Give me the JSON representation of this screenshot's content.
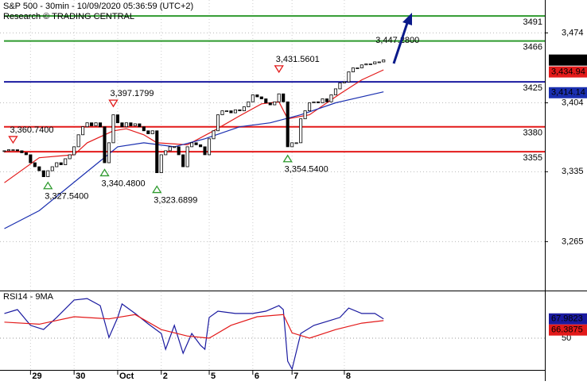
{
  "chart_data": {
    "type": "candlestick",
    "title": "S&P 500 - 30min - 10/09/2020 05:36:59 (UTC+2)",
    "subtitle": "Research © TRADING CENTRAL",
    "xlim": [
      -1,
      124
    ],
    "xticks": [
      {
        "value": 6,
        "label": "29"
      },
      {
        "value": 16,
        "label": "30"
      },
      {
        "value": 26,
        "label": "Oct"
      },
      {
        "value": 36,
        "label": "2"
      },
      {
        "value": 47,
        "label": "5"
      },
      {
        "value": 57,
        "label": "6"
      },
      {
        "value": 66,
        "label": "7"
      },
      {
        "value": 78,
        "label": "8"
      }
    ],
    "ylim": [
      3216,
      3507
    ],
    "yticks": [
      {
        "value": 3474,
        "label": "3,474"
      },
      {
        "value": 3404,
        "label": "3,404"
      },
      {
        "value": 3335,
        "label": "3,335"
      },
      {
        "value": 3265,
        "label": "3,265"
      }
    ],
    "grid": true,
    "values": [
      3356,
      3357,
      3357,
      3356,
      3354,
      3352,
      3344,
      3340,
      3336,
      3330,
      3336,
      3340,
      3344,
      3342,
      3348,
      3352,
      3360,
      3372,
      3380,
      3384,
      3381,
      3384,
      3380,
      3344,
      3364,
      3392,
      3384,
      3380,
      3384,
      3381,
      3383,
      3380,
      3376,
      3373,
      3376,
      3334,
      3352,
      3356,
      3360,
      3360,
      3352,
      3340,
      3360,
      3364,
      3362,
      3360,
      3352,
      3368,
      3376,
      3392,
      3396,
      3396,
      3394,
      3397,
      3396,
      3400,
      3405,
      3412,
      3410,
      3408,
      3404,
      3402,
      3405,
      3413,
      3405,
      3360,
      3364,
      3364,
      3388,
      3396,
      3404,
      3405,
      3404,
      3408,
      3405,
      3412,
      3418,
      3424,
      3425,
      3435,
      3439,
      3439,
      3442,
      3443,
      3443,
      3445,
      3445,
      3447
    ],
    "up_color": "#ffffff",
    "down_color": "#000000",
    "series": [
      {
        "color": "#e31a1a",
        "x": [
          0,
          8,
          16,
          19,
          25,
          28,
          32,
          35,
          42,
          48,
          54,
          59,
          63,
          65,
          70,
          77,
          82,
          87
        ],
        "values": [
          3324,
          3349,
          3352,
          3364,
          3376,
          3378,
          3372,
          3364,
          3362,
          3376,
          3391,
          3403,
          3405,
          3388,
          3392,
          3413,
          3427,
          3437
        ]
      },
      {
        "color": "#1a2fb0",
        "x": [
          0,
          8,
          17,
          26,
          32,
          39,
          46,
          54,
          61,
          68,
          76,
          87
        ],
        "values": [
          3278,
          3296,
          3328,
          3360,
          3364,
          3360,
          3368,
          3380,
          3384,
          3392,
          3404,
          3415
        ]
      }
    ],
    "levels": [
      {
        "value": 3491,
        "color": "#2e9a2e"
      },
      {
        "value": 3466,
        "color": "#2e9a2e"
      },
      {
        "value": 3425,
        "color": "#1a1aa0"
      },
      {
        "value": 3380,
        "color": "#e31a1a"
      },
      {
        "value": 3355,
        "color": "#e31a1a"
      }
    ],
    "price_labels": [
      {
        "value": 3446.83,
        "label": "3,446.83",
        "color": "#000000"
      },
      {
        "value": 3434.94,
        "label": "3,434.94",
        "color": "#e31a1a"
      },
      {
        "value": 3414.14,
        "label": "3,414.14",
        "color": "#1a2fb0"
      }
    ],
    "annotations": [
      {
        "x": 2,
        "value": 3360.74,
        "label": "3,360.7400",
        "kind": "high"
      },
      {
        "x": 10,
        "value": 3327.54,
        "label": "3,327.5400",
        "kind": "low"
      },
      {
        "x": 23,
        "value": 3340.48,
        "label": "3,340.4800",
        "kind": "low"
      },
      {
        "x": 25,
        "value": 3397.1799,
        "label": "3,397.1799",
        "kind": "high"
      },
      {
        "x": 35,
        "value": 3323.6899,
        "label": "3,323.6899",
        "kind": "low"
      },
      {
        "x": 63,
        "value": 3431.5601,
        "label": "3,431.5601",
        "kind": "high"
      },
      {
        "x": 65,
        "value": 3354.54,
        "label": "3,354.5400",
        "kind": "low"
      },
      {
        "x": 87,
        "value": 3447.28,
        "label": "3,447.2800",
        "kind": "last"
      }
    ],
    "rsi": {
      "title": "RSI14 - 9MA",
      "ylim": [
        10,
        90
      ],
      "yticks": [
        50
      ],
      "series": [
        {
          "color": "#1a1aa0",
          "x": [
            0,
            3,
            6,
            9,
            12,
            16,
            19,
            22,
            24,
            26,
            27,
            30,
            33,
            36,
            37,
            39,
            41,
            43,
            45,
            46,
            47,
            49,
            53,
            57,
            60,
            63,
            64,
            65,
            66,
            68,
            71,
            74,
            77,
            79,
            82,
            85,
            87
          ],
          "values": [
            73,
            76.7,
            61.9,
            58.1,
            69.3,
            85.6,
            87,
            80.4,
            50.7,
            69.3,
            81.9,
            73,
            63.3,
            54.4,
            39.6,
            61.9,
            35.9,
            54.4,
            43.3,
            39.6,
            69.3,
            75.2,
            73,
            73,
            75.2,
            80.4,
            76.7,
            28.5,
            21.1,
            54.4,
            61.9,
            65.6,
            69.3,
            78.1,
            73,
            73,
            68
          ]
        },
        {
          "color": "#e31a1a",
          "x": [
            0,
            8,
            16,
            24,
            30,
            36,
            42,
            47,
            52,
            58,
            64,
            66,
            70,
            76,
            82,
            87
          ],
          "values": [
            65,
            63,
            70,
            68,
            72,
            58,
            52,
            50,
            62,
            70,
            72,
            55,
            50,
            58,
            64,
            66.4
          ]
        }
      ],
      "labels": [
        {
          "value": 67.9823,
          "color": "#1a1aa0"
        },
        {
          "value": 66.3875,
          "color": "#e31a1a"
        }
      ]
    }
  }
}
